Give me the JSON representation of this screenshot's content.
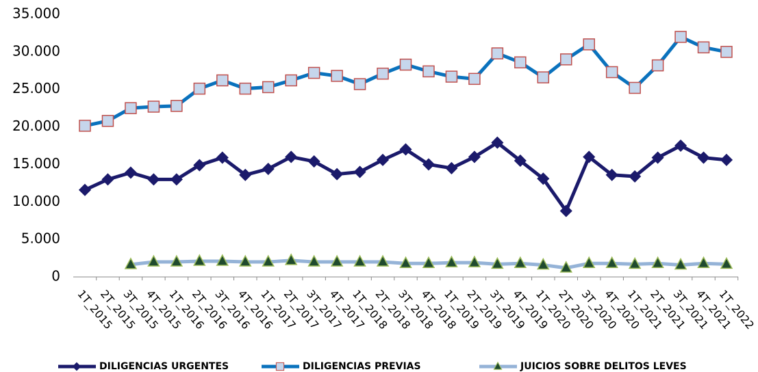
{
  "chart_data": {
    "type": "line",
    "categories": [
      "1T_2015",
      "2T_2015",
      "3T_2015",
      "4T_2015",
      "1T_2016",
      "2T_2016",
      "3T_2016",
      "4T_2016",
      "1T_2017",
      "2T_2017",
      "3T_2017",
      "4T_2017",
      "1T_2018",
      "2T_2018",
      "3T_2018",
      "4T_2018",
      "1T_2019",
      "2T_2019",
      "3T_2019",
      "4T_2019",
      "1T_2020",
      "2T_2020",
      "3T_2020",
      "4T_2020",
      "1T_2021",
      "2T_2021",
      "3T_2021",
      "4T_2021",
      "1T_2022"
    ],
    "series": [
      {
        "name": "DILIGENCIAS URGENTES",
        "color": "#1b1a6b",
        "marker": "diamond",
        "marker_fill": "#1b1a6b",
        "marker_stroke": "#1b1a6b",
        "values": [
          11600,
          13000,
          13900,
          13000,
          13000,
          14900,
          15900,
          13600,
          14400,
          16000,
          15400,
          13700,
          14000,
          15600,
          17000,
          15000,
          14500,
          16000,
          17900,
          15500,
          13100,
          8800,
          16000,
          13600,
          13400,
          15900,
          17500,
          15900,
          15600
        ]
      },
      {
        "name": "DILIGENCIAS PREVIAS",
        "color": "#0a72bd",
        "marker": "square",
        "marker_fill": "#c6d6ec",
        "marker_stroke": "#c0504d",
        "values": [
          20150,
          20800,
          22500,
          22700,
          22800,
          25100,
          26200,
          25100,
          25300,
          26200,
          27200,
          26800,
          25700,
          27100,
          28300,
          27400,
          26700,
          26400,
          29800,
          28600,
          26600,
          29000,
          31000,
          27300,
          25200,
          28200,
          32000,
          30600,
          30000
        ]
      },
      {
        "name": "JUICIOS SOBRE DELITOS LEVES",
        "color": "#95b3d7",
        "marker": "triangle",
        "marker_fill": "#1f4a2e",
        "marker_stroke": "#9bbb59",
        "values": [
          null,
          null,
          1650,
          2000,
          2000,
          2100,
          2100,
          2000,
          2000,
          2200,
          2000,
          2000,
          2000,
          2000,
          1800,
          1800,
          1900,
          1900,
          1700,
          1800,
          1600,
          1200,
          1800,
          1800,
          1700,
          1800,
          1600,
          1800,
          1700
        ]
      }
    ],
    "ylim": [
      0,
      35000
    ],
    "yticks": [
      0,
      {
        "value": 5000,
        "label": "5.000"
      },
      {
        "value": 10000,
        "label": "10.000"
      },
      {
        "value": 15000,
        "label": "15.000"
      },
      {
        "value": 20000,
        "label": "20.000"
      },
      {
        "value": 25000,
        "label": "25.000"
      },
      {
        "value": 30000,
        "label": "30.000"
      },
      {
        "value": 35000,
        "label": "35.000"
      }
    ],
    "grid": false,
    "legend": "bottom"
  }
}
